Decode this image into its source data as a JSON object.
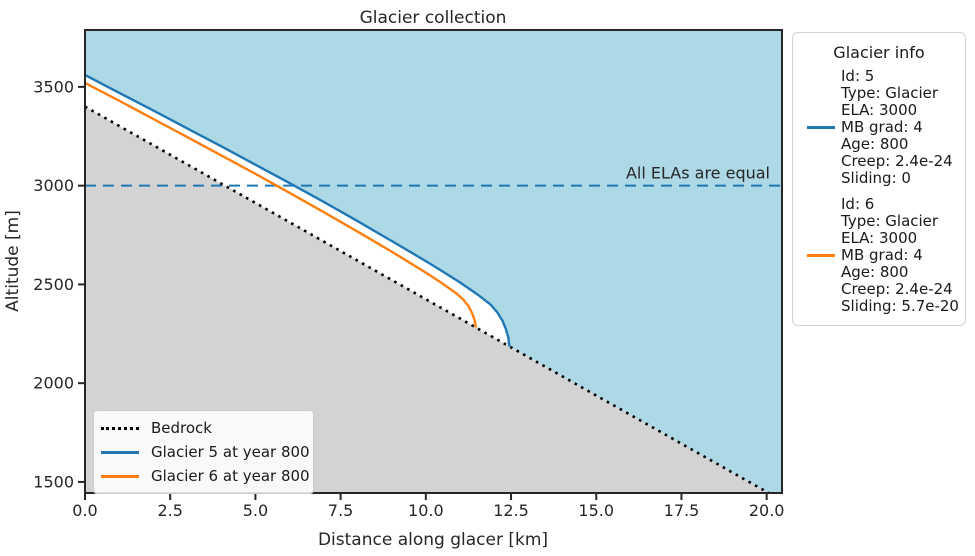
{
  "title": "Glacier collection",
  "axes": {
    "x_label": "Distance along glacer [km]",
    "y_label": "Altitude [m]"
  },
  "annotation": "All ELAs are equal",
  "legend": {
    "items": [
      {
        "label": "Bedrock",
        "style": "dotted",
        "color": "#000000"
      },
      {
        "label": "Glacier 5 at year 800",
        "style": "solid",
        "color": "#1f77b4"
      },
      {
        "label": "Glacier 6 at year 800",
        "style": "solid",
        "color": "#ff7f0e"
      }
    ]
  },
  "info_panel": {
    "title": "Glacier info",
    "entries": [
      {
        "marker_color": "#1f77b4",
        "lines": [
          "Id: 5",
          "Type: Glacier",
          "ELA: 3000",
          "MB grad: 4",
          "Age: 800",
          "Creep: 2.4e-24",
          "Sliding: 0"
        ]
      },
      {
        "marker_color": "#ff7f0e",
        "lines": [
          "Id: 6",
          "Type: Glacier",
          "ELA: 3000",
          "MB grad: 4",
          "Age: 800",
          "Creep: 2.4e-24",
          "Sliding: 5.7e-20"
        ]
      }
    ]
  },
  "colors": {
    "sky": "#ADD8E6",
    "ground": "#D3D3D3",
    "glacier5": "#1f77b4",
    "glacier6": "#ff7f0e",
    "bedrock_line": "#000000",
    "ela_line": "#1f77b4",
    "spine": "#262626",
    "text": "#262626"
  },
  "chart_data": {
    "type": "line",
    "title": "Glacier collection",
    "xlabel": "Distance along glacer [km]",
    "ylabel": "Altitude [m]",
    "xlim": [
      0,
      20.45
    ],
    "ylim": [
      1444,
      3788
    ],
    "x_tick_labels": [
      "0.0",
      "2.5",
      "5.0",
      "7.5",
      "10.0",
      "12.5",
      "15.0",
      "17.5",
      "20.0"
    ],
    "y_tick_labels": [
      "1500",
      "2000",
      "2500",
      "3000",
      "3500"
    ],
    "ela_altitude_m": 3000,
    "grid": false,
    "legend_position": "lower left",
    "series": [
      {
        "name": "Bedrock",
        "style": "dotted",
        "color": "#000000",
        "points": [
          [
            0,
            3400
          ],
          [
            20.45,
            1406
          ]
        ]
      },
      {
        "name": "Glacier 5 at year 800",
        "style": "solid",
        "color": "#1f77b4",
        "points": [
          [
            0,
            3560
          ],
          [
            1,
            3470
          ],
          [
            2,
            3381
          ],
          [
            3,
            3290
          ],
          [
            4,
            3199
          ],
          [
            5,
            3106
          ],
          [
            6,
            3013
          ],
          [
            7,
            2918
          ],
          [
            8,
            2820
          ],
          [
            9,
            2720
          ],
          [
            10,
            2618
          ],
          [
            10.5,
            2565
          ],
          [
            11,
            2510
          ],
          [
            11.5,
            2451
          ],
          [
            11.9,
            2398
          ],
          [
            12.1,
            2358
          ],
          [
            12.25,
            2316
          ],
          [
            12.35,
            2274
          ],
          [
            12.42,
            2233
          ],
          [
            12.45,
            2186
          ]
        ]
      },
      {
        "name": "Glacier 6 at year 800",
        "style": "solid",
        "color": "#ff7f0e",
        "points": [
          [
            0,
            3520
          ],
          [
            1,
            3430
          ],
          [
            2,
            3338
          ],
          [
            3,
            3246
          ],
          [
            4,
            3153
          ],
          [
            5,
            3060
          ],
          [
            6,
            2964
          ],
          [
            7,
            2866
          ],
          [
            8,
            2767
          ],
          [
            9,
            2666
          ],
          [
            10,
            2560
          ],
          [
            10.5,
            2503
          ],
          [
            10.9,
            2454
          ],
          [
            11.1,
            2423
          ],
          [
            11.25,
            2391
          ],
          [
            11.35,
            2358
          ],
          [
            11.43,
            2320
          ],
          [
            11.47,
            2282
          ]
        ]
      }
    ]
  }
}
